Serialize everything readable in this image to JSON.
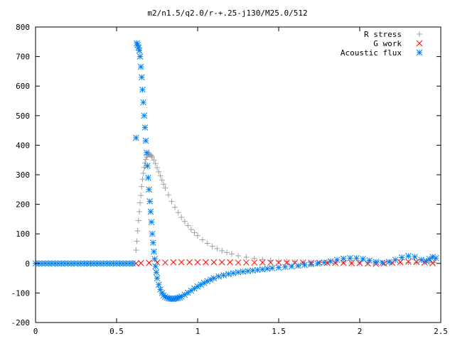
{
  "chart_data": {
    "type": "scatter",
    "title": "m2/n1.5/q2.0/r-+.25-j130/M25.0/512",
    "xlabel": "",
    "ylabel": "",
    "xlim": [
      0,
      2.5
    ],
    "ylim": [
      -200,
      800
    ],
    "xticks": [
      {
        "value": 0,
        "label": "0"
      },
      {
        "value": 0.5,
        "label": "0.5"
      },
      {
        "value": 1,
        "label": "1"
      },
      {
        "value": 1.5,
        "label": "1.5"
      },
      {
        "value": 2,
        "label": "2"
      },
      {
        "value": 2.5,
        "label": "2.5"
      }
    ],
    "yticks": [
      {
        "value": -200,
        "label": "-200"
      },
      {
        "value": -100,
        "label": "-100"
      },
      {
        "value": 0,
        "label": "0"
      },
      {
        "value": 100,
        "label": "100"
      },
      {
        "value": 200,
        "label": "200"
      },
      {
        "value": 300,
        "label": "300"
      },
      {
        "value": 400,
        "label": "400"
      },
      {
        "value": 500,
        "label": "500"
      },
      {
        "value": 600,
        "label": "600"
      },
      {
        "value": 700,
        "label": "700"
      },
      {
        "value": 800,
        "label": "800"
      }
    ],
    "grid": false,
    "legend_position": "top-right",
    "series": [
      {
        "name": "R stress",
        "marker": "plus",
        "color": "#a0a0a0",
        "x": [
          0.62,
          0.625,
          0.63,
          0.635,
          0.64,
          0.645,
          0.65,
          0.655,
          0.66,
          0.665,
          0.67,
          0.675,
          0.68,
          0.685,
          0.69,
          0.695,
          0.7,
          0.705,
          0.71,
          0.715,
          0.72,
          0.73,
          0.74,
          0.75,
          0.76,
          0.77,
          0.78,
          0.79,
          0.8,
          0.82,
          0.84,
          0.86,
          0.88,
          0.9,
          0.92,
          0.94,
          0.96,
          0.98,
          1.0,
          1.03,
          1.06,
          1.09,
          1.12,
          1.15,
          1.18,
          1.21,
          1.25,
          1.3,
          1.35,
          1.4,
          1.45,
          1.5,
          1.55,
          1.6,
          1.65,
          1.7,
          1.75,
          1.8,
          1.85,
          1.9,
          1.95,
          2.0,
          2.05,
          2.1,
          2.15,
          2.2,
          2.25,
          2.3,
          2.35,
          2.4,
          2.43,
          2.46
        ],
        "values": [
          45,
          75,
          110,
          145,
          175,
          205,
          230,
          260,
          285,
          305,
          325,
          340,
          352,
          360,
          366,
          369,
          370,
          369,
          367,
          364,
          360,
          350,
          338,
          324,
          310,
          296,
          282,
          268,
          255,
          232,
          210,
          190,
          172,
          156,
          142,
          128,
          115,
          104,
          94,
          80,
          68,
          58,
          50,
          43,
          37,
          32,
          26,
          21,
          17,
          13,
          10,
          8,
          6,
          5,
          4,
          3,
          3,
          2,
          2,
          2,
          2,
          2,
          2,
          2,
          2,
          2,
          2,
          3,
          3,
          3,
          3,
          3
        ]
      },
      {
        "name": "G work",
        "marker": "cross",
        "color": "#ff0000",
        "x": [
          0.62,
          0.65,
          0.7,
          0.75,
          0.8,
          0.85,
          0.9,
          0.95,
          1.0,
          1.05,
          1.1,
          1.15,
          1.2,
          1.25,
          1.3,
          1.35,
          1.4,
          1.45,
          1.5,
          1.55,
          1.6,
          1.65,
          1.7,
          1.75,
          1.8,
          1.85,
          1.9,
          1.95,
          2.0,
          2.05,
          2.1,
          2.15,
          2.2,
          2.25,
          2.3,
          2.35,
          2.4,
          2.45
        ],
        "values": [
          0,
          1,
          2,
          3,
          3,
          4,
          4,
          4,
          4,
          4,
          4,
          4,
          4,
          3,
          3,
          3,
          3,
          3,
          3,
          3,
          3,
          3,
          2,
          2,
          2,
          2,
          2,
          1,
          1,
          0,
          -1,
          0,
          2,
          4,
          6,
          5,
          3,
          1
        ]
      },
      {
        "name": "Acoustic flux",
        "marker": "star",
        "color": "#0080f0",
        "x": [
          0.0,
          0.02,
          0.04,
          0.06,
          0.08,
          0.1,
          0.12,
          0.14,
          0.16,
          0.18,
          0.2,
          0.22,
          0.24,
          0.26,
          0.28,
          0.3,
          0.32,
          0.34,
          0.36,
          0.38,
          0.4,
          0.42,
          0.44,
          0.46,
          0.48,
          0.5,
          0.52,
          0.54,
          0.56,
          0.58,
          0.6,
          0.62,
          0.625,
          0.63,
          0.635,
          0.64,
          0.645,
          0.65,
          0.655,
          0.66,
          0.665,
          0.67,
          0.675,
          0.68,
          0.685,
          0.69,
          0.695,
          0.7,
          0.705,
          0.71,
          0.715,
          0.72,
          0.725,
          0.73,
          0.735,
          0.74,
          0.745,
          0.75,
          0.76,
          0.77,
          0.78,
          0.79,
          0.8,
          0.81,
          0.82,
          0.83,
          0.84,
          0.85,
          0.86,
          0.87,
          0.88,
          0.89,
          0.9,
          0.92,
          0.94,
          0.96,
          0.98,
          1.0,
          1.02,
          1.04,
          1.06,
          1.08,
          1.1,
          1.13,
          1.16,
          1.19,
          1.22,
          1.25,
          1.28,
          1.31,
          1.34,
          1.37,
          1.4,
          1.43,
          1.46,
          1.5,
          1.54,
          1.58,
          1.62,
          1.66,
          1.7,
          1.74,
          1.78,
          1.82,
          1.86,
          1.9,
          1.94,
          1.98,
          2.02,
          2.06,
          2.1,
          2.14,
          2.18,
          2.22,
          2.26,
          2.3,
          2.34,
          2.38,
          2.41,
          2.43,
          2.45,
          2.47
        ],
        "values": [
          0,
          0,
          0,
          0,
          0,
          0,
          0,
          0,
          0,
          0,
          0,
          0,
          0,
          0,
          0,
          0,
          0,
          0,
          0,
          0,
          0,
          0,
          0,
          0,
          0,
          0,
          0,
          0,
          0,
          0,
          0,
          425,
          745,
          740,
          730,
          720,
          700,
          665,
          630,
          588,
          545,
          500,
          460,
          415,
          375,
          330,
          290,
          250,
          210,
          175,
          140,
          100,
          70,
          40,
          15,
          -10,
          -30,
          -50,
          -72,
          -88,
          -100,
          -108,
          -113,
          -116,
          -118,
          -119,
          -120,
          -120,
          -119,
          -118,
          -117,
          -115,
          -112,
          -106,
          -99,
          -92,
          -85,
          -78,
          -72,
          -66,
          -60,
          -55,
          -50,
          -44,
          -40,
          -36,
          -33,
          -30,
          -28,
          -26,
          -24,
          -22,
          -20,
          -18,
          -16,
          -14,
          -12,
          -10,
          -8,
          -5,
          -3,
          0,
          3,
          7,
          12,
          16,
          18,
          18,
          15,
          10,
          5,
          2,
          5,
          12,
          20,
          25,
          22,
          12,
          8,
          15,
          22,
          18
        ]
      }
    ]
  }
}
